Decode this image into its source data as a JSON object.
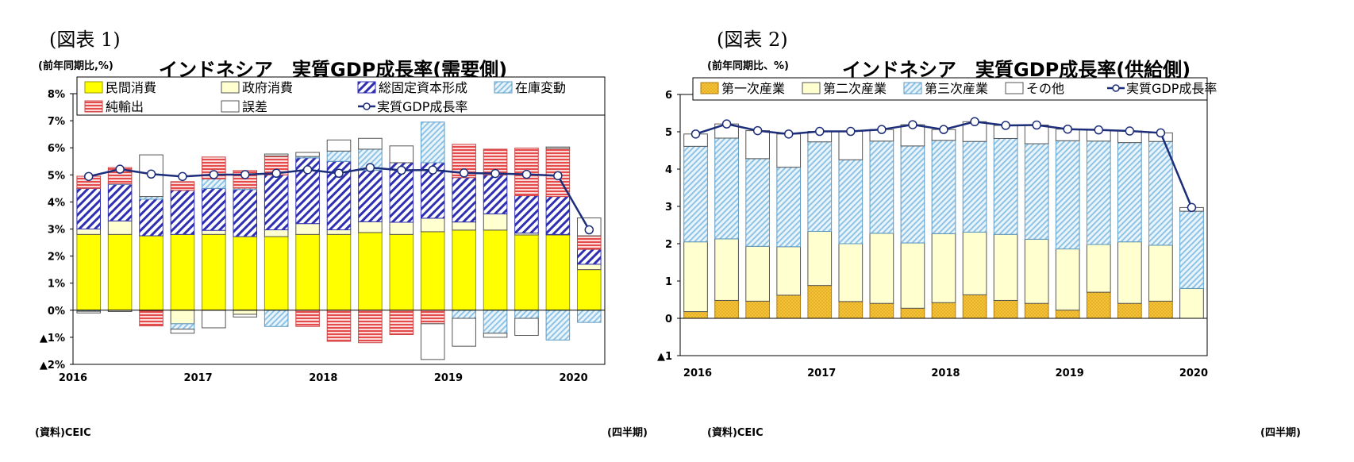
{
  "colors": {
    "yellow": "#ffff00",
    "cream": "#ffffd0",
    "gold": "#f3c43a",
    "navy": "#1b1f8a",
    "hatch_blue": "#2f2fb3",
    "light_blue": "#8fc4e6",
    "red": "#e64b4b",
    "line": "#1c2d7a"
  },
  "left": {
    "fig_label": "(図表 1)",
    "unit": "(前年同期比,%)",
    "source": "(資料)CEIC",
    "x_unit": "(四半期)",
    "chart_data": {
      "type": "bar",
      "title": "インドネシア　実質GDP成長率(需要側)",
      "stacked": true,
      "ylim": [
        -2,
        8
      ],
      "yticks": [
        -2,
        -1,
        0,
        1,
        2,
        3,
        4,
        5,
        6,
        7,
        8
      ],
      "ytick_labels": [
        "▲2%",
        "▲1%",
        "0%",
        "1%",
        "2%",
        "3%",
        "4%",
        "5%",
        "6%",
        "7%",
        "8%"
      ],
      "year_labels": [
        "2016",
        "2017",
        "2018",
        "2019",
        "2020"
      ],
      "categories": [
        "2016Q1",
        "2016Q2",
        "2016Q3",
        "2016Q4",
        "2017Q1",
        "2017Q2",
        "2017Q3",
        "2017Q4",
        "2018Q1",
        "2018Q2",
        "2018Q3",
        "2018Q4",
        "2019Q1",
        "2019Q2",
        "2019Q3",
        "2019Q4",
        "2020Q1"
      ],
      "series": [
        {
          "name": "民間消費",
          "style": "yellow",
          "values": [
            2.8,
            2.8,
            2.75,
            2.8,
            2.8,
            2.72,
            2.72,
            2.8,
            2.8,
            2.87,
            2.8,
            2.9,
            2.96,
            2.96,
            2.78,
            2.78,
            1.5
          ]
        },
        {
          "name": "政府消費",
          "style": "cream",
          "values": [
            0.2,
            0.5,
            -0.03,
            -0.5,
            0.15,
            -0.15,
            0.25,
            0.4,
            0.17,
            0.4,
            0.45,
            0.5,
            0.3,
            0.6,
            0.07,
            0.02,
            0.2
          ]
        },
        {
          "name": "総固定資本形成",
          "style": "hatch",
          "values": [
            1.5,
            1.35,
            1.35,
            1.63,
            1.55,
            1.74,
            2.03,
            2.43,
            2.53,
            1.9,
            2.2,
            2.05,
            1.64,
            1.44,
            1.38,
            1.4,
            0.55
          ]
        },
        {
          "name": "在庫変動",
          "style": "lightblue",
          "values": [
            -0.04,
            0.02,
            0.1,
            -0.2,
            0.35,
            0.05,
            -0.6,
            0.05,
            0.38,
            0.78,
            0.0,
            1.5,
            -0.3,
            -0.85,
            -0.3,
            -1.1,
            -0.45
          ]
        },
        {
          "name": "純輸出",
          "style": "red",
          "values": [
            0.45,
            0.6,
            -0.55,
            0.32,
            0.81,
            0.65,
            0.7,
            -0.6,
            -1.15,
            -1.2,
            -0.9,
            -0.5,
            1.23,
            0.95,
            1.76,
            1.78,
            0.5
          ]
        },
        {
          "name": "誤差",
          "style": "white",
          "values": [
            -0.06,
            -0.05,
            1.54,
            -0.15,
            -0.65,
            -0.1,
            0.07,
            0.15,
            0.41,
            0.4,
            0.62,
            -1.32,
            -1.03,
            -0.15,
            -0.63,
            0.05,
            0.66
          ]
        }
      ],
      "line": {
        "name": "実質GDP成長率",
        "values": [
          4.94,
          5.21,
          5.03,
          4.94,
          5.01,
          5.01,
          5.06,
          5.19,
          5.06,
          5.27,
          5.17,
          5.18,
          5.07,
          5.05,
          5.02,
          4.97,
          2.97
        ]
      }
    }
  },
  "right": {
    "fig_label": "(図表 2)",
    "unit": "(前年同期比、%)",
    "source": "(資料)CEIC",
    "x_unit": "(四半期)",
    "chart_data": {
      "type": "bar",
      "title": "インドネシア　実質GDP成長率(供給側)",
      "stacked": true,
      "ylim": [
        -1,
        6
      ],
      "yticks": [
        -1,
        0,
        1,
        2,
        3,
        4,
        5,
        6
      ],
      "ytick_labels": [
        "▲1",
        "0",
        "1",
        "2",
        "3",
        "4",
        "5",
        "6"
      ],
      "year_labels": [
        "2016",
        "2017",
        "2018",
        "2019",
        "2020"
      ],
      "categories": [
        "2016Q1",
        "2016Q2",
        "2016Q3",
        "2016Q4",
        "2017Q1",
        "2017Q2",
        "2017Q3",
        "2017Q4",
        "2018Q1",
        "2018Q2",
        "2018Q3",
        "2018Q4",
        "2019Q1",
        "2019Q2",
        "2019Q3",
        "2019Q4",
        "2020Q1"
      ],
      "series": [
        {
          "name": "第一次産業",
          "style": "gold",
          "values": [
            0.18,
            0.48,
            0.46,
            0.62,
            0.88,
            0.45,
            0.4,
            0.27,
            0.42,
            0.63,
            0.48,
            0.4,
            0.22,
            0.7,
            0.4,
            0.46,
            0.0
          ]
        },
        {
          "name": "第二次産業",
          "style": "cream",
          "values": [
            1.87,
            1.65,
            1.47,
            1.3,
            1.45,
            1.55,
            1.88,
            1.75,
            1.85,
            1.68,
            1.77,
            1.72,
            1.64,
            1.28,
            1.65,
            1.5,
            0.8
          ]
        },
        {
          "name": "第三次産業",
          "style": "lightblue",
          "values": [
            2.56,
            2.7,
            2.35,
            2.13,
            2.4,
            2.25,
            2.47,
            2.6,
            2.5,
            2.43,
            2.57,
            2.56,
            2.9,
            2.77,
            2.66,
            2.78,
            2.07
          ]
        },
        {
          "name": "その他",
          "style": "white",
          "values": [
            0.33,
            0.38,
            0.75,
            0.89,
            0.28,
            0.76,
            0.31,
            0.57,
            0.29,
            0.53,
            0.35,
            0.5,
            0.31,
            0.3,
            0.31,
            0.23,
            0.1
          ]
        }
      ],
      "line": {
        "name": "実質GDP成長率",
        "values": [
          4.94,
          5.21,
          5.03,
          4.94,
          5.01,
          5.01,
          5.06,
          5.19,
          5.06,
          5.27,
          5.17,
          5.18,
          5.07,
          5.05,
          5.02,
          4.97,
          2.97
        ]
      }
    }
  }
}
